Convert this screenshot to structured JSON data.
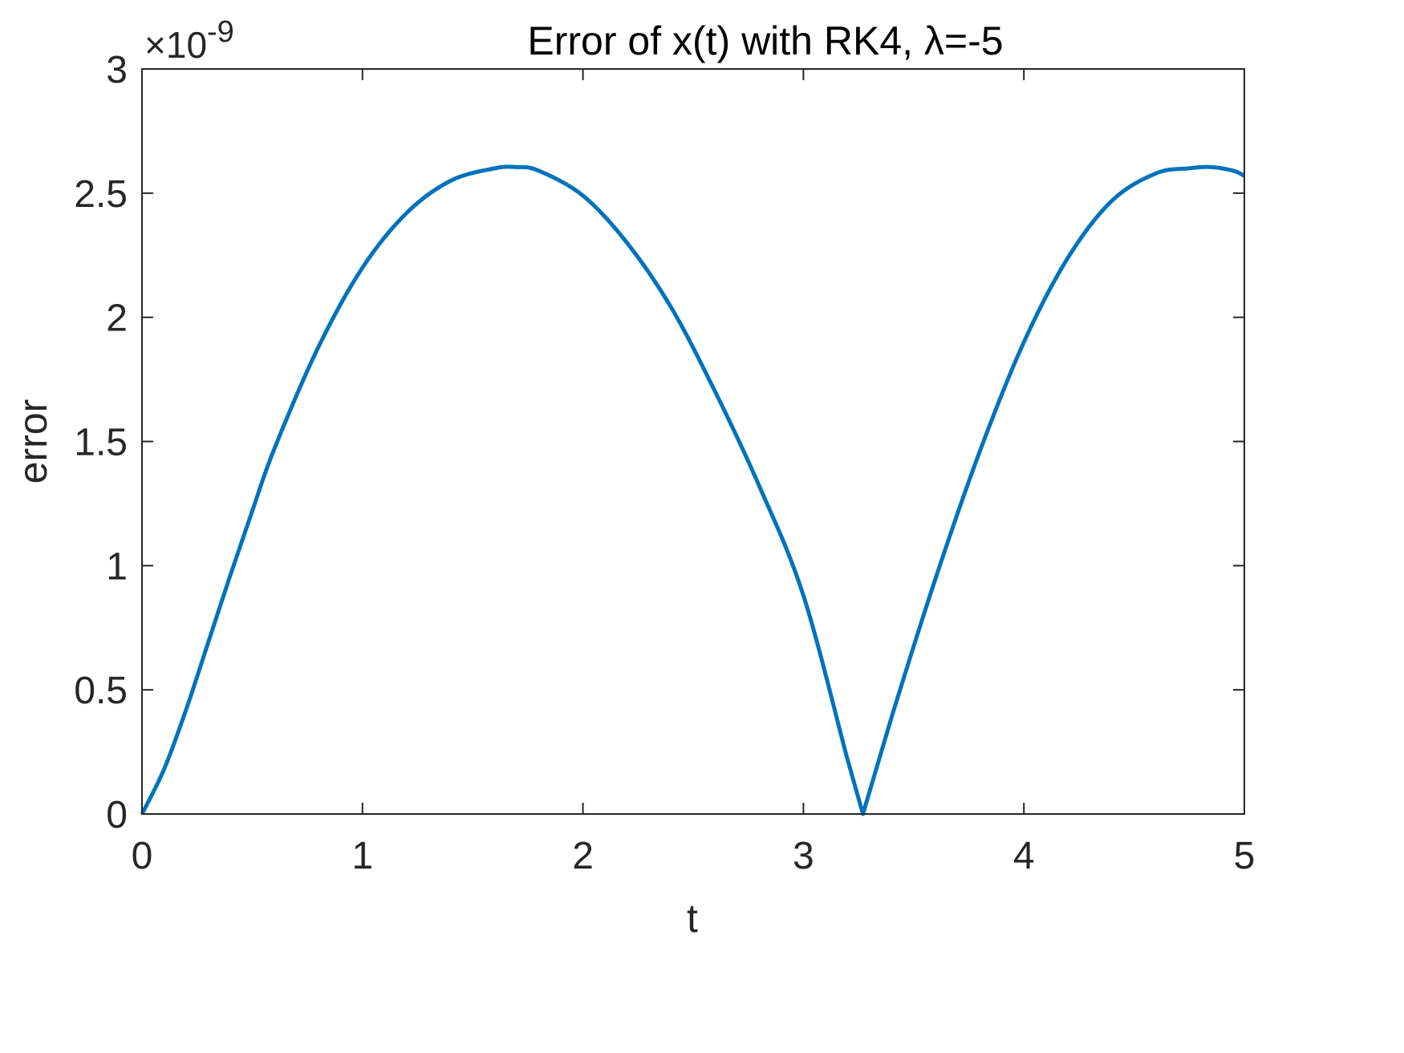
{
  "chart_data": {
    "type": "line",
    "title": "Error of x(t) with RK4, λ=-5",
    "xlabel": "t",
    "ylabel": "error",
    "xlim": [
      0,
      5
    ],
    "ylim": [
      0,
      3e-09
    ],
    "y_exponent_label": "×10",
    "y_exponent_power": "-9",
    "x_ticks": [
      0,
      1,
      2,
      3,
      4,
      5
    ],
    "x_tick_labels": [
      "0",
      "1",
      "2",
      "3",
      "4",
      "5"
    ],
    "y_ticks": [
      0,
      0.5,
      1,
      1.5,
      2,
      2.5,
      3
    ],
    "y_tick_labels": [
      "0",
      "0.5",
      "1",
      "1.5",
      "2",
      "2.5",
      "3"
    ],
    "grid": false,
    "series": [
      {
        "color": "#0072BD",
        "x": [
          0,
          0.1,
          0.2,
          0.3,
          0.4,
          0.5,
          0.6,
          0.8,
          1.0,
          1.2,
          1.4,
          1.6,
          1.7,
          1.8,
          2.0,
          2.2,
          2.4,
          2.6,
          2.8,
          3.0,
          3.2,
          3.27,
          3.4,
          3.6,
          3.8,
          4.0,
          4.2,
          4.4,
          4.6,
          4.75,
          4.85,
          4.95,
          5.0
        ],
        "y": [
          0,
          0.18,
          0.42,
          0.69,
          0.96,
          1.22,
          1.47,
          1.88,
          2.2,
          2.42,
          2.55,
          2.6,
          2.605,
          2.59,
          2.49,
          2.3,
          2.04,
          1.7,
          1.32,
          0.88,
          0.22,
          0,
          0.39,
          0.95,
          1.46,
          1.9,
          2.24,
          2.47,
          2.58,
          2.6,
          2.605,
          2.59,
          2.57
        ],
        "y_unit_scale": 1e-09
      }
    ]
  }
}
